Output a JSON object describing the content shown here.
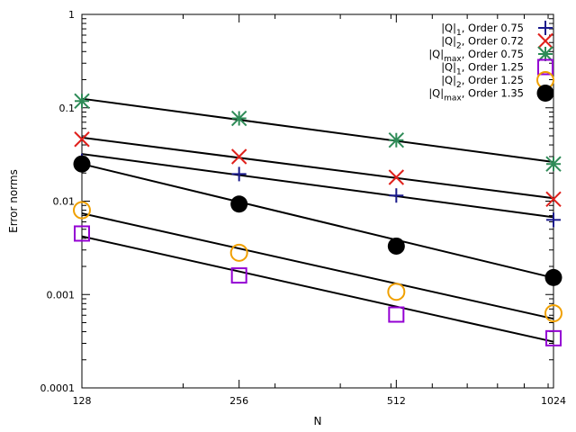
{
  "chart_data": {
    "type": "scatter",
    "xlabel": "N",
    "ylabel": "Error norms",
    "x_scale": "log2",
    "y_scale": "log10",
    "xlim": [
      128,
      1024
    ],
    "ylim": [
      0.0001,
      1
    ],
    "x_ticks": [
      128,
      256,
      512,
      1024
    ],
    "x_tick_labels": [
      "128",
      "256",
      "512",
      "1024"
    ],
    "y_ticks": [
      0.0001,
      0.001,
      0.01,
      0.1,
      1
    ],
    "y_tick_labels": [
      "0.0001",
      "0.001",
      "0.01",
      "0.1",
      "1"
    ],
    "grid": false,
    "legend_position": "top-right",
    "series": [
      {
        "name_base": "|Q|",
        "name_sub": "1",
        "name_suffix": ", Order 0.75",
        "marker": "plus",
        "color": "#1a1a8c",
        "x": [
          128,
          256,
          512,
          1024
        ],
        "y": [
          0.027,
          0.0195,
          0.0115,
          0.0063
        ],
        "fit_order": 0.75,
        "fit_at_128": 0.032
      },
      {
        "name_base": "|Q|",
        "name_sub": "2",
        "name_suffix": ", Order 0.72",
        "marker": "cross",
        "color": "#e0201b",
        "x": [
          128,
          256,
          512,
          1024
        ],
        "y": [
          0.046,
          0.03,
          0.018,
          0.0105
        ],
        "fit_order": 0.72,
        "fit_at_128": 0.048
      },
      {
        "name_base": "|Q|",
        "name_sub": "max",
        "name_suffix": ", Order 0.75",
        "marker": "star",
        "color": "#2e8b57",
        "x": [
          128,
          256,
          512,
          1024
        ],
        "y": [
          0.118,
          0.077,
          0.045,
          0.025
        ],
        "fit_order": 0.75,
        "fit_at_128": 0.125
      },
      {
        "name_base": "|Q|",
        "name_sub": "1",
        "name_suffix": ", Order 1.25",
        "marker": "square",
        "color": "#9400d3",
        "x": [
          128,
          256,
          512,
          1024
        ],
        "y": [
          0.0045,
          0.0016,
          0.00061,
          0.00034
        ],
        "fit_order": 1.25,
        "fit_at_128": 0.0042
      },
      {
        "name_base": "|Q|",
        "name_sub": "2",
        "name_suffix": ", Order 1.25",
        "marker": "circle",
        "color": "#f0a000",
        "x": [
          128,
          256,
          512,
          1024
        ],
        "y": [
          0.008,
          0.0028,
          0.00107,
          0.00063
        ],
        "fit_order": 1.25,
        "fit_at_128": 0.0074
      },
      {
        "name_base": "|Q|",
        "name_sub": "max",
        "name_suffix": ", Order 1.35",
        "marker": "disc",
        "color": "#000000",
        "x": [
          128,
          256,
          512,
          1024
        ],
        "y": [
          0.025,
          0.0093,
          0.0033,
          0.00152
        ],
        "fit_order": 1.35,
        "fit_at_128": 0.025
      }
    ]
  }
}
